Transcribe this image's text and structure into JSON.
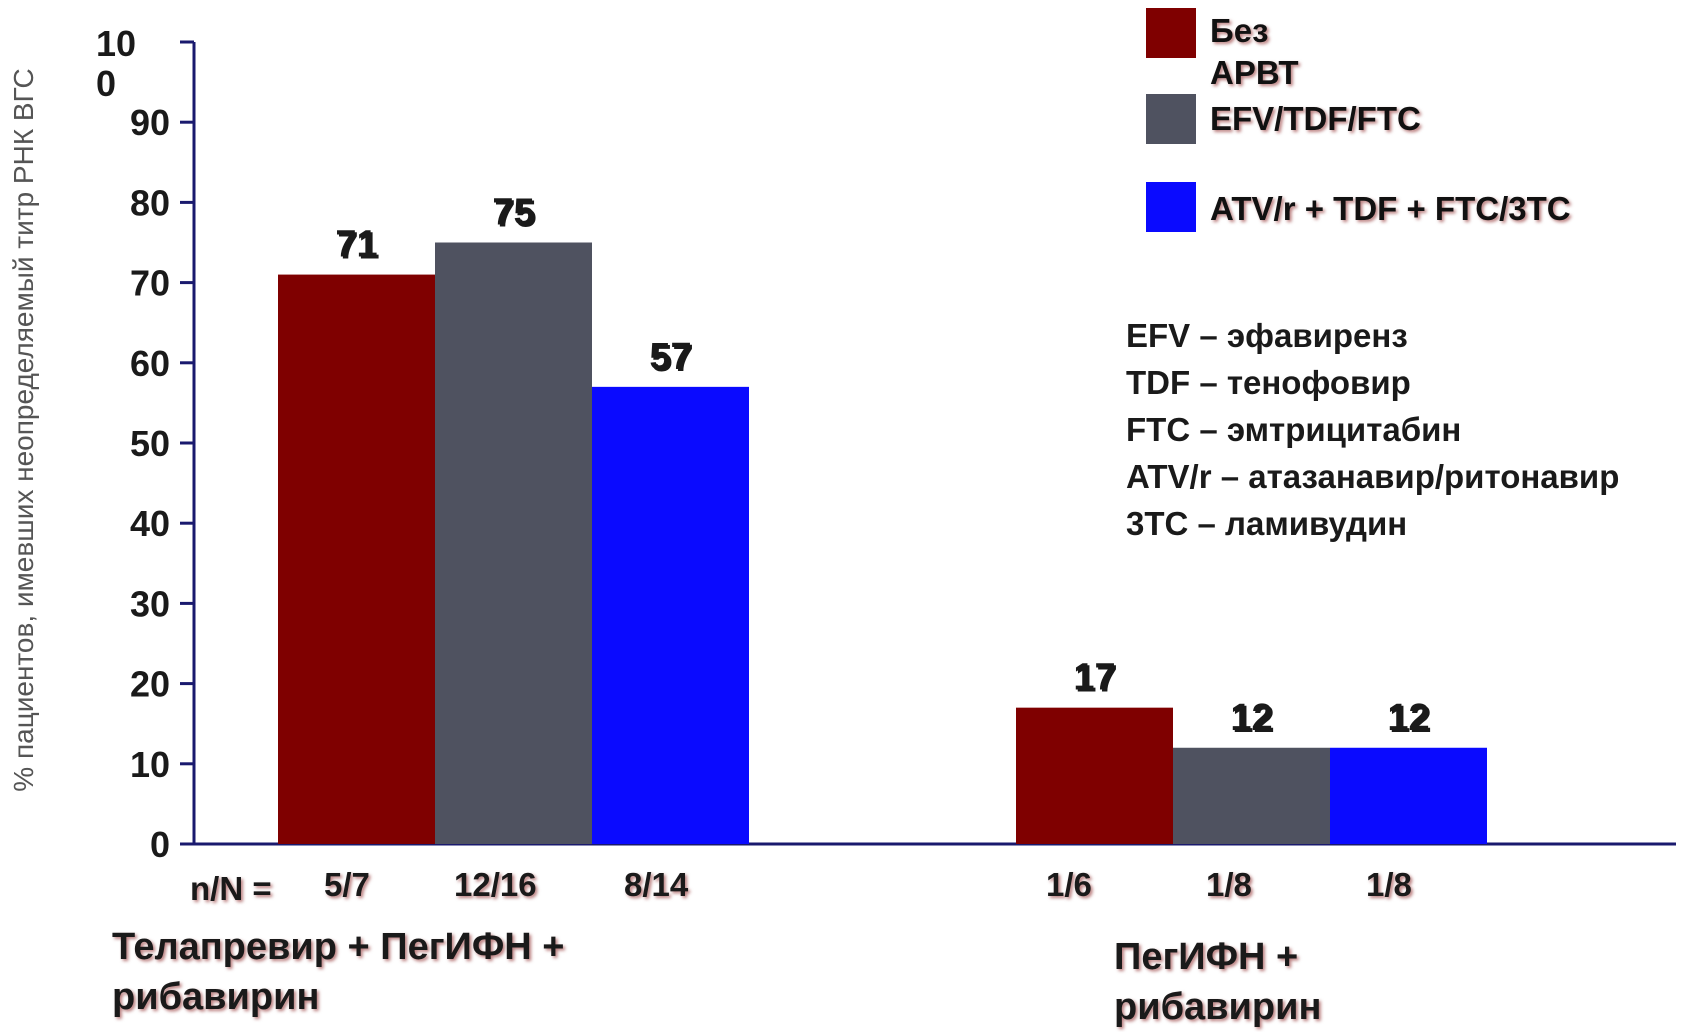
{
  "chart_data": {
    "type": "bar",
    "ylabel": "% пациентов, имевших неопределяемый титр РНК ВГС",
    "ylim": [
      0,
      100
    ],
    "yticks": [
      "0",
      "10",
      "20",
      "30",
      "40",
      "50",
      "60",
      "70",
      "80",
      "90",
      "10 0"
    ],
    "categories": [
      "Телапревир + ПегИФН + рибавирин",
      "ПегИФН + рибавирин"
    ],
    "series": [
      {
        "name": "Без АРВТ",
        "color": "#7f0000",
        "values": [
          71,
          17
        ],
        "n": [
          "5/7",
          "1/6"
        ]
      },
      {
        "name": "EFV/TDF/FTC",
        "color": "#4f5260",
        "values": [
          75,
          12
        ],
        "n": [
          "12/16",
          "1/8"
        ]
      },
      {
        "name": "ATV/r + TDF + FTC/3TC",
        "color": "#0a0aff",
        "values": [
          57,
          12
        ],
        "n": [
          "8/14",
          "1/8"
        ]
      }
    ],
    "value_labels": [
      [
        "71",
        "17"
      ],
      [
        "75",
        "12"
      ],
      [
        "57",
        "12"
      ]
    ],
    "nn_prefix": "n/N =",
    "legend_position": "top-right",
    "grid": false
  },
  "abbreviations": [
    "EFV – эфавиренз",
    "TDF – тенофовир",
    "FTC – эмтрицитабин",
    "ATV/r – атазанавир/ритонавир",
    "3TC – ламивудин"
  ],
  "colors": {
    "axis": "#1a1a6e"
  }
}
